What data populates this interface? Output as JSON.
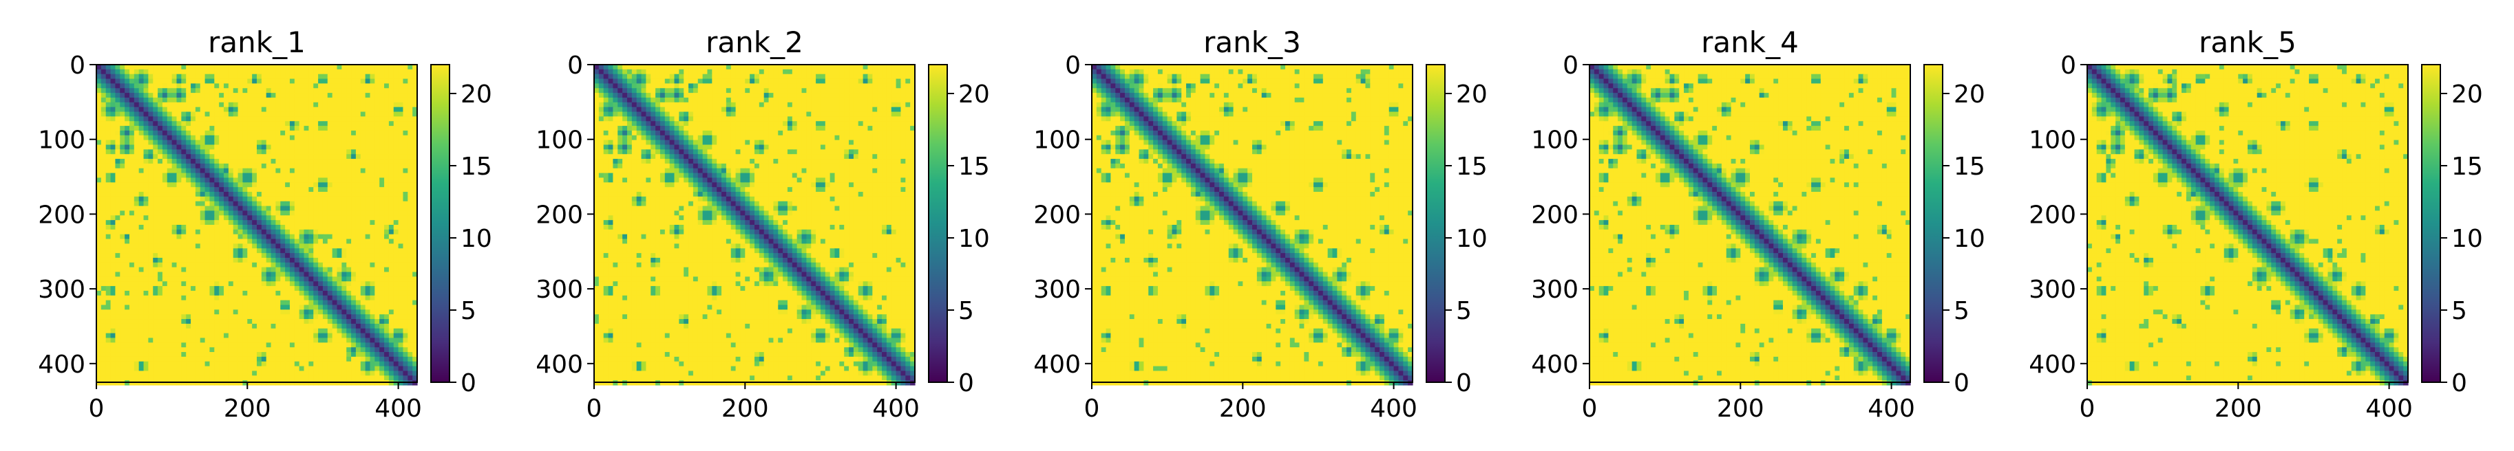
{
  "chart_data": [
    {
      "type": "heatmap",
      "title": "rank_1",
      "xlabel": "",
      "ylabel": "",
      "xlim": [
        0,
        425
      ],
      "ylim": [
        425,
        0
      ],
      "x_ticks": [
        "0",
        "200",
        "400"
      ],
      "y_ticks": [
        "0",
        "100",
        "200",
        "300",
        "400"
      ],
      "colorbar": {
        "min": 0,
        "max": 22,
        "ticks": [
          "0",
          "5",
          "10",
          "15",
          "20"
        ],
        "colormap": "viridis"
      },
      "matrix_size": 425,
      "pattern": "pairwise distance map: low values along main diagonal with off-diagonal contact blocks, high values (~22) elsewhere"
    },
    {
      "type": "heatmap",
      "title": "rank_2",
      "xlabel": "",
      "ylabel": "",
      "xlim": [
        0,
        425
      ],
      "ylim": [
        425,
        0
      ],
      "x_ticks": [
        "0",
        "200",
        "400"
      ],
      "y_ticks": [
        "0",
        "100",
        "200",
        "300",
        "400"
      ],
      "colorbar": {
        "min": 0,
        "max": 22,
        "ticks": [
          "0",
          "5",
          "10",
          "15",
          "20"
        ],
        "colormap": "viridis"
      },
      "matrix_size": 425,
      "pattern": "pairwise distance map: low values along main diagonal with off-diagonal contact blocks, high values (~22) elsewhere"
    },
    {
      "type": "heatmap",
      "title": "rank_3",
      "xlabel": "",
      "ylabel": "",
      "xlim": [
        0,
        425
      ],
      "ylim": [
        425,
        0
      ],
      "x_ticks": [
        "0",
        "200",
        "400"
      ],
      "y_ticks": [
        "0",
        "100",
        "200",
        "300",
        "400"
      ],
      "colorbar": {
        "min": 0,
        "max": 22,
        "ticks": [
          "0",
          "5",
          "10",
          "15",
          "20"
        ],
        "colormap": "viridis"
      },
      "matrix_size": 425,
      "pattern": "pairwise distance map: low values along main diagonal with off-diagonal contact blocks, high values (~22) elsewhere"
    },
    {
      "type": "heatmap",
      "title": "rank_4",
      "xlabel": "",
      "ylabel": "",
      "xlim": [
        0,
        425
      ],
      "ylim": [
        425,
        0
      ],
      "x_ticks": [
        "0",
        "200",
        "400"
      ],
      "y_ticks": [
        "0",
        "100",
        "200",
        "300",
        "400"
      ],
      "colorbar": {
        "min": 0,
        "max": 22,
        "ticks": [
          "0",
          "5",
          "10",
          "15",
          "20"
        ],
        "colormap": "viridis"
      },
      "matrix_size": 425,
      "pattern": "pairwise distance map: low values along main diagonal with off-diagonal contact blocks, high values (~22) elsewhere"
    },
    {
      "type": "heatmap",
      "title": "rank_5",
      "xlabel": "",
      "ylabel": "",
      "xlim": [
        0,
        425
      ],
      "ylim": [
        425,
        0
      ],
      "x_ticks": [
        "0",
        "200",
        "400"
      ],
      "y_ticks": [
        "0",
        "100",
        "200",
        "300",
        "400"
      ],
      "colorbar": {
        "min": 0,
        "max": 22,
        "ticks": [
          "0",
          "5",
          "10",
          "15",
          "20"
        ],
        "colormap": "viridis"
      },
      "matrix_size": 425,
      "pattern": "pairwise distance map: low values along main diagonal with off-diagonal contact blocks, high values (~22) elsewhere"
    }
  ],
  "colors": {
    "viridis_low": "#440154",
    "viridis_mid_low": "#3b528b",
    "viridis_mid": "#21918c",
    "viridis_mid_high": "#5ec962",
    "viridis_high": "#fde725",
    "axis": "#000000"
  }
}
